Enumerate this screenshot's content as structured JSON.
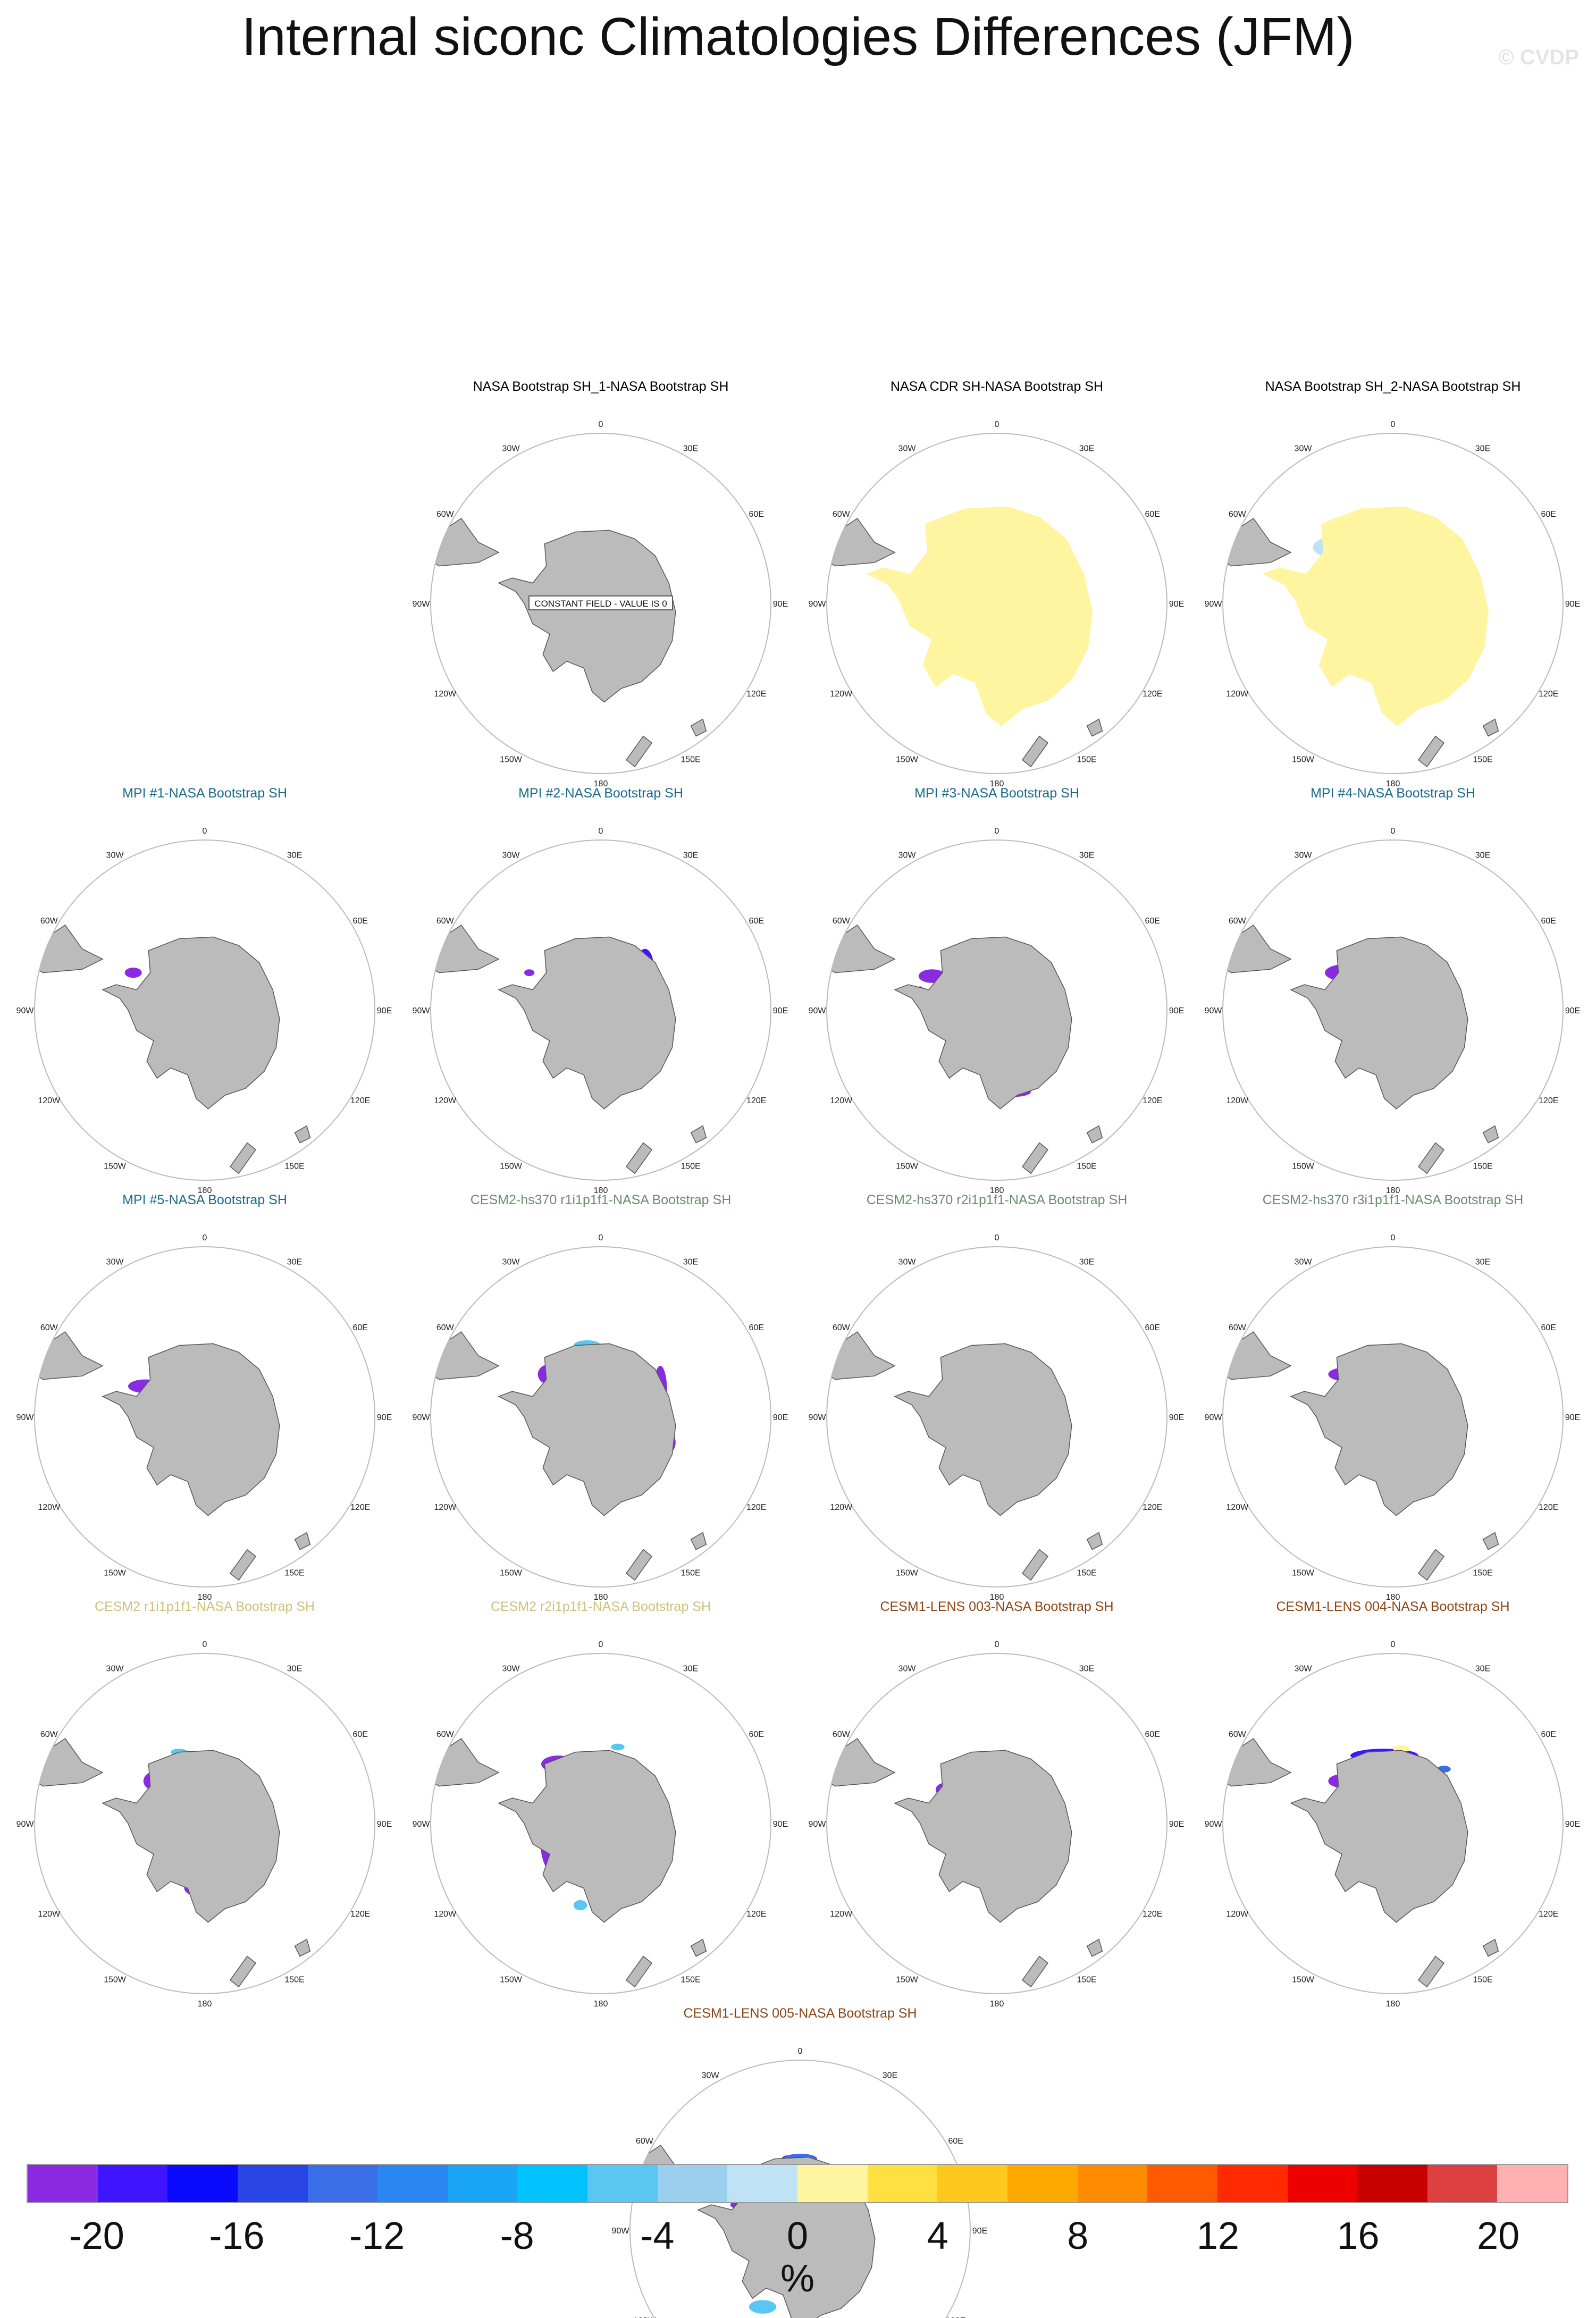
{
  "title": "Internal siconc Climatologies Differences (JFM)",
  "watermark": "© CVDP",
  "constant_field_text": "CONSTANT FIELD - VALUE IS 0",
  "lon_labels": [
    "0",
    "30E",
    "60E",
    "90E",
    "120E",
    "150E",
    "180",
    "150W",
    "120W",
    "90W",
    "60W",
    "30W"
  ],
  "panels": [
    {
      "title": "NASA Bootstrap SH_1-NASA Bootstrap SH",
      "color": "#000000",
      "fill": "none"
    },
    {
      "title": "NASA CDR SH-NASA Bootstrap SH",
      "color": "#000000",
      "fill": "cdr"
    },
    {
      "title": "NASA Bootstrap SH_2-NASA Bootstrap SH",
      "color": "#000000",
      "fill": "bs2"
    },
    {
      "title": "MPI #1-NASA Bootstrap SH",
      "color": "#1a6b8a",
      "fill": "mpi1"
    },
    {
      "title": "MPI #2-NASA Bootstrap SH",
      "color": "#1a6b8a",
      "fill": "mpi2"
    },
    {
      "title": "MPI #3-NASA Bootstrap SH",
      "color": "#1a6b8a",
      "fill": "mpi3"
    },
    {
      "title": "MPI #4-NASA Bootstrap SH",
      "color": "#1a6b8a",
      "fill": "mpi4"
    },
    {
      "title": "MPI #5-NASA Bootstrap SH",
      "color": "#1a6b8a",
      "fill": "mpi5"
    },
    {
      "title": "CESM2-hs370 r1i1p1f1-NASA Bootstrap SH",
      "color": "#6b8e6b",
      "fill": "hs1"
    },
    {
      "title": "CESM2-hs370 r2i1p1f1-NASA Bootstrap SH",
      "color": "#6b8e6b",
      "fill": "hs2"
    },
    {
      "title": "CESM2-hs370 r3i1p1f1-NASA Bootstrap SH",
      "color": "#6b8e6b",
      "fill": "hs3"
    },
    {
      "title": "CESM2 r1i1p1f1-NASA Bootstrap SH",
      "color": "#cfc07a",
      "fill": "c1"
    },
    {
      "title": "CESM2 r2i1p1f1-NASA Bootstrap SH",
      "color": "#cfc07a",
      "fill": "c2"
    },
    {
      "title": "CESM1-LENS 003-NASA Bootstrap SH",
      "color": "#8b4513",
      "fill": "l3"
    },
    {
      "title": "CESM1-LENS 004-NASA Bootstrap SH",
      "color": "#8b4513",
      "fill": "l4"
    },
    {
      "title": "CESM1-LENS 005-NASA Bootstrap SH",
      "color": "#8b4513",
      "fill": "l5"
    }
  ],
  "colorbar": {
    "colors": [
      "#8a2be2",
      "#3f14ff",
      "#0a0aff",
      "#2945e6",
      "#3a6ee8",
      "#2a86f0",
      "#19a4f5",
      "#00c2ff",
      "#5ac6f2",
      "#9ad0ee",
      "#bfe2f5",
      "#fff5a0",
      "#ffe040",
      "#ffc81e",
      "#ffaa00",
      "#ff8c00",
      "#ff5a00",
      "#ff2a00",
      "#ee0000",
      "#c80000",
      "#dc4040",
      "#ffb0b0"
    ],
    "labels": [
      "-20",
      "-16",
      "-12",
      "-8",
      "-4",
      "0",
      "4",
      "8",
      "12",
      "16",
      "20"
    ],
    "label_values": [
      -20,
      -16,
      -12,
      -8,
      -4,
      0,
      4,
      8,
      12,
      16,
      20
    ],
    "min": -22,
    "max": 22,
    "unit": "%"
  }
}
